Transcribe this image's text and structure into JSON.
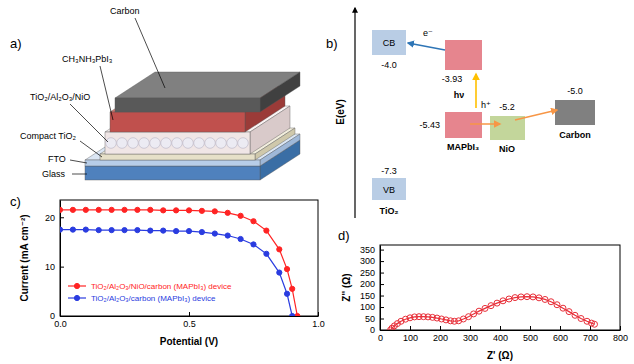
{
  "figure": {
    "panel_labels": [
      "a)",
      "b)",
      "c)",
      "d)"
    ]
  },
  "schematic": {
    "labels": [
      "Carbon",
      "CH₃NH₃PbI₃",
      "TiO₂/Al₂O₃/NiO",
      "Compact TiO₂",
      "FTO",
      "Glass"
    ]
  },
  "energy_diagram": {
    "axis_label": "E(eV)",
    "materials": [
      {
        "name": "TiO₂",
        "cb_label": "CB",
        "cb": "-4.0",
        "vb_label": "VB",
        "vb": "-7.3"
      },
      {
        "name": "MAPbI₃",
        "lumo": "-3.93",
        "homo": "-5.43"
      },
      {
        "name": "NiO",
        "level": "-5.2"
      },
      {
        "name": "Carbon",
        "level": "-5.0"
      }
    ],
    "electron": "e⁻",
    "photon": "hν",
    "hole": "h⁺"
  },
  "chart_data": [
    {
      "type": "line",
      "xlabel": "Potential (V)",
      "ylabel": "Current (mA cm⁻²)",
      "x": [
        0,
        0.05,
        0.1,
        0.15,
        0.2,
        0.25,
        0.3,
        0.35,
        0.4,
        0.45,
        0.5,
        0.55,
        0.6,
        0.65,
        0.7,
        0.75,
        0.8,
        0.85,
        0.88,
        0.9,
        0.92
      ],
      "series": [
        {
          "name": "TiO₂/Al₂O₃/NiO/carbon (MAPbI₃) device",
          "color": "#ff2424",
          "marker": "circle",
          "values": [
            21.5,
            21.5,
            21.5,
            21.5,
            21.5,
            21.5,
            21.5,
            21.5,
            21.4,
            21.4,
            21.4,
            21.3,
            21.2,
            20.9,
            20.3,
            19.2,
            17.3,
            13.5,
            9.5,
            5.5,
            0
          ]
        },
        {
          "name": "TiO₂/Al₂O₃/carbon (MAPbI₃) device",
          "color": "#2a3ce0",
          "marker": "circle",
          "values": [
            17.5,
            17.5,
            17.5,
            17.4,
            17.4,
            17.4,
            17.4,
            17.3,
            17.3,
            17.2,
            17.2,
            17.0,
            16.7,
            16.3,
            15.6,
            14.5,
            12.6,
            8.8,
            4.5,
            0,
            null
          ]
        }
      ],
      "xlim": [
        0,
        1
      ],
      "xticks": [
        {
          "value": 0,
          "label": "0.0"
        },
        0.5,
        {
          "value": 1,
          "label": "1.0"
        }
      ],
      "ylim": [
        0,
        23.5
      ],
      "yticks": [
        0,
        10,
        20
      ],
      "legend": "lower left"
    },
    {
      "type": "line",
      "xlabel": "Z' (Ω)",
      "ylabel": "Z'' (Ω)",
      "x": [
        35,
        40,
        48,
        58,
        70,
        85,
        100,
        115,
        130,
        145,
        160,
        175,
        190,
        205,
        220,
        235,
        248,
        262,
        278,
        295,
        312,
        330,
        350,
        370,
        390,
        410,
        430,
        450,
        470,
        490,
        510,
        530,
        550,
        570,
        590,
        610,
        630,
        650,
        670,
        690,
        705,
        715
      ],
      "series": [
        {
          "color": "#e8303a",
          "marker": "circle-open",
          "values": [
            0,
            8,
            18,
            28,
            38,
            47,
            53,
            57,
            58,
            58,
            57,
            55,
            52,
            48,
            44,
            40,
            38,
            40,
            48,
            58,
            70,
            82,
            94,
            106,
            117,
            127,
            135,
            141,
            144,
            145,
            144,
            140,
            133,
            123,
            110,
            95,
            80,
            64,
            50,
            38,
            30,
            25
          ]
        }
      ],
      "xlim": [
        0,
        800
      ],
      "xticks": [
        0,
        100,
        200,
        300,
        400,
        500,
        600,
        700,
        800
      ],
      "ylim": [
        0,
        370
      ],
      "yticks": [
        0,
        50,
        100,
        150,
        200,
        250,
        300,
        350
      ]
    }
  ]
}
